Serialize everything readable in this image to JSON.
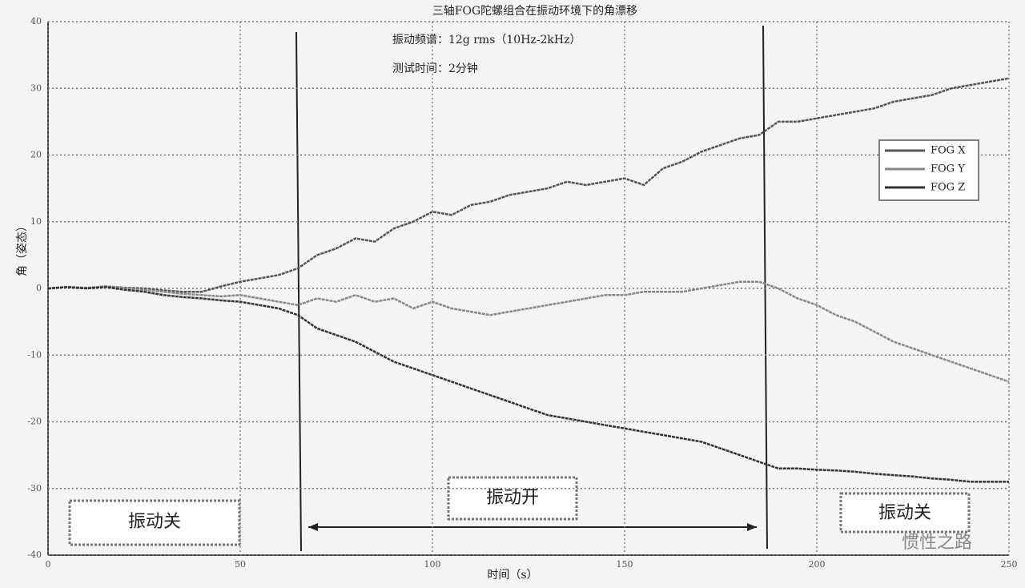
{
  "chart_data": {
    "type": "line",
    "title": "三轴FOG陀螺组合在振动环境下的角漂移",
    "subtitle": [
      "振动频谱：12g rms（10Hz-2kHz）",
      "测试时间：2分钟"
    ],
    "xlabel": "时间（s）",
    "ylabel": "角（姿态）",
    "x": [
      0,
      5,
      10,
      15,
      20,
      25,
      30,
      35,
      40,
      45,
      50,
      55,
      60,
      65,
      70,
      75,
      80,
      85,
      90,
      95,
      100,
      105,
      110,
      115,
      120,
      125,
      130,
      135,
      140,
      145,
      150,
      155,
      160,
      165,
      170,
      175,
      180,
      185,
      190,
      195,
      200,
      205,
      210,
      215,
      220,
      225,
      230,
      235,
      240,
      245,
      250
    ],
    "series": [
      {
        "name": "FOG X",
        "color": "#555555",
        "values": [
          0,
          0.2,
          0,
          0.3,
          0.1,
          0,
          -0.3,
          -0.5,
          -0.5,
          0.3,
          1,
          1.5,
          2,
          3,
          5,
          6,
          7.5,
          7,
          9,
          10,
          11.5,
          11,
          12.5,
          13,
          14,
          14.5,
          15,
          16,
          15.5,
          16,
          16.5,
          15.5,
          18,
          19,
          20.5,
          21.5,
          22.5,
          23,
          25,
          25,
          25.5,
          26,
          26.5,
          27,
          28,
          28.5,
          29,
          30,
          30.5,
          31,
          31.5
        ]
      },
      {
        "name": "FOG Y",
        "color": "#888888",
        "values": [
          0,
          0.2,
          0.1,
          0.3,
          0,
          -0.2,
          -0.5,
          -0.8,
          -1,
          -1.2,
          -1,
          -1.5,
          -2,
          -2.5,
          -1.5,
          -2,
          -1,
          -2,
          -1.5,
          -3,
          -2,
          -3,
          -3.5,
          -4,
          -3.5,
          -3,
          -2.5,
          -2,
          -1.5,
          -1,
          -1,
          -0.5,
          -0.5,
          -0.5,
          0,
          0.5,
          1,
          1,
          0,
          -1.5,
          -2.5,
          -4,
          -5,
          -6.5,
          -8,
          -9,
          -10,
          -11,
          -12,
          -13,
          -14
        ]
      },
      {
        "name": "FOG Z",
        "color": "#333333",
        "values": [
          0,
          0.2,
          0,
          0.2,
          -0.2,
          -0.5,
          -1,
          -1.3,
          -1.5,
          -1.8,
          -2,
          -2.5,
          -3,
          -4,
          -6,
          -7,
          -8,
          -9.5,
          -11,
          -12,
          -13,
          -14,
          -15,
          -16,
          -17,
          -18,
          -19,
          -19.5,
          -20,
          -20.5,
          -21,
          -21.5,
          -22,
          -22.5,
          -23,
          -24,
          -25,
          -26,
          -27,
          -27,
          -27.2,
          -27.3,
          -27.5,
          -27.8,
          -28,
          -28.2,
          -28.5,
          -28.7,
          -29,
          -29,
          -29
        ]
      }
    ],
    "xlim": [
      0,
      250
    ],
    "xticks": [
      0,
      50,
      100,
      150,
      200,
      250
    ],
    "ylim": [
      -40,
      40
    ],
    "yticks": [
      -40,
      -30,
      -20,
      -10,
      0,
      10,
      20,
      30,
      40
    ],
    "grid": true,
    "legend": "upper right",
    "annotations": [
      "振动关",
      "振动开",
      "振动关"
    ],
    "watermark": "惯性之路"
  }
}
